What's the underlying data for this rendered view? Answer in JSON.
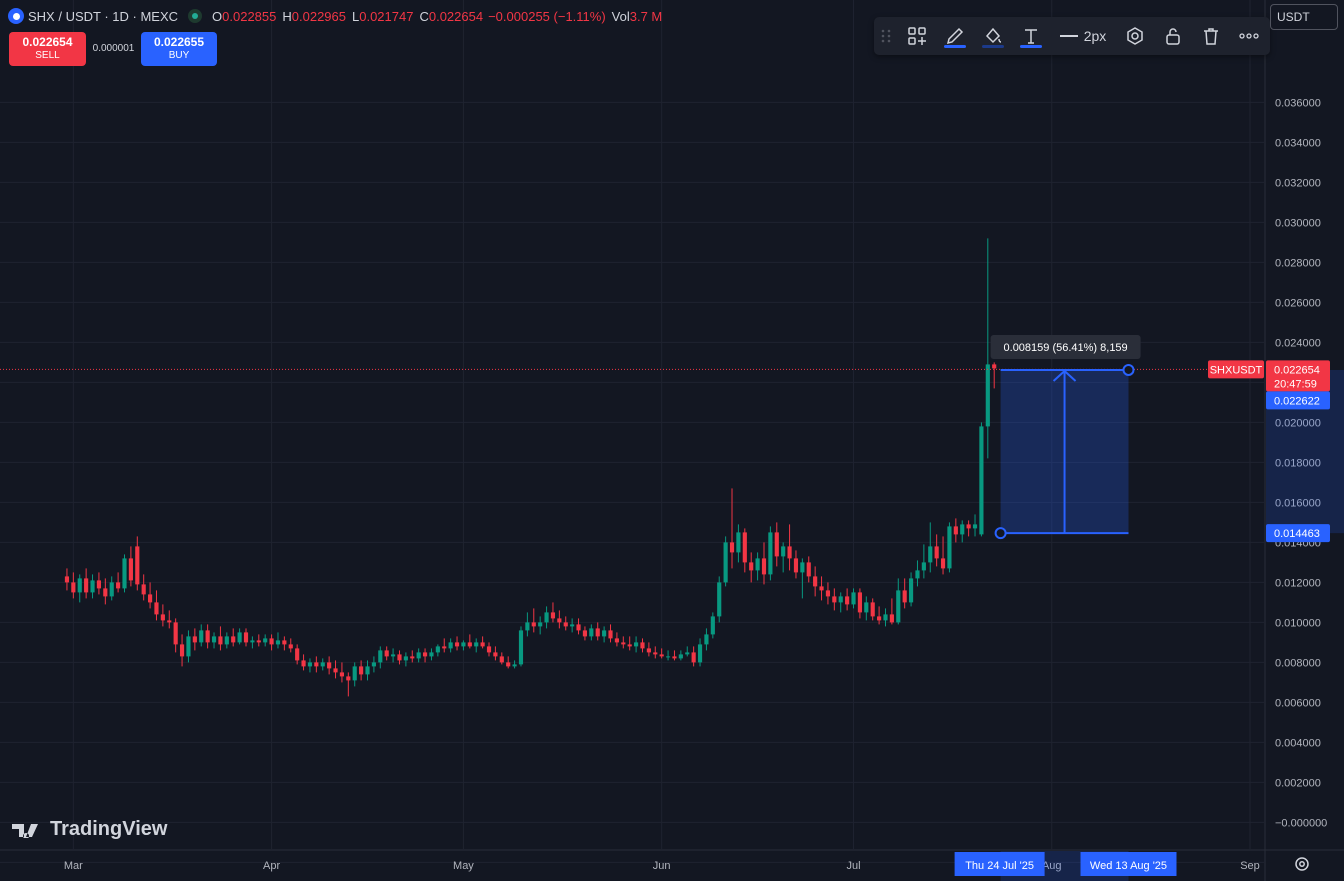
{
  "header": {
    "symbol": "SHX / USDT · 1D · MEXC",
    "o_label": "O",
    "o_value": "0.022855",
    "h_label": "H",
    "h_value": "0.022965",
    "l_label": "L",
    "l_value": "0.021747",
    "c_label": "C",
    "c_value": "0.022654",
    "change": "−0.000255 (−1.11%)",
    "vol_label": "Vol",
    "vol_value": "3.7 M",
    "icons": [
      "coin-logo-icon",
      "market-open-dot-icon"
    ]
  },
  "trade": {
    "sell_price": "0.022654",
    "sell_label": "SELL",
    "spread": "0.000001",
    "buy_price": "0.022655",
    "buy_label": "BUY"
  },
  "toolbar": {
    "width_label": "2px",
    "icons": [
      "drag-handle-icon",
      "templates-icon",
      "pencil-icon",
      "fill-icon",
      "text-icon",
      "line-width-icon",
      "settings-icon",
      "lock-icon",
      "trash-icon",
      "more-icon"
    ]
  },
  "currency_button": "USDT",
  "brand": "TradingView",
  "colors": {
    "background": "#131722",
    "grid": "#1f2330",
    "up": "#089981",
    "down": "#f23645",
    "accent": "#2962ff",
    "measure_fill": "rgba(41,98,255,0.25)",
    "price_line": "#f23645"
  },
  "chart_data": {
    "type": "candlestick",
    "ylim": [
      -0.0023,
      0.0372
    ],
    "y_ticks": [
      "0.036000",
      "0.034000",
      "0.032000",
      "0.030000",
      "0.028000",
      "0.026000",
      "0.024000",
      "0.022000",
      "0.020000",
      "0.018000",
      "0.016000",
      "0.014000",
      "0.012000",
      "0.010000",
      "0.008000",
      "0.006000",
      "0.004000",
      "0.002000",
      "−0.000000",
      "−0.002000"
    ],
    "x_ticks": [
      {
        "label": "Mar",
        "date": "2025-03-01"
      },
      {
        "label": "Apr",
        "date": "2025-04-01"
      },
      {
        "label": "May",
        "date": "2025-05-01"
      },
      {
        "label": "Jun",
        "date": "2025-06-01"
      },
      {
        "label": "Jul",
        "date": "2025-07-01"
      },
      {
        "label": "Aug",
        "date": "2025-08-01"
      },
      {
        "label": "Sep",
        "date": "2025-09-01"
      }
    ],
    "x_range": [
      "2025-02-18",
      "2025-09-01"
    ],
    "last_price": {
      "label": "SHXUSDT",
      "value": "0.022654",
      "countdown": "20:47:59"
    },
    "measure": {
      "start_date": "2025-07-24",
      "end_date": "2025-08-13",
      "start_label": "Thu 24 Jul '25",
      "end_label": "Wed 13 Aug '25",
      "low": 0.014463,
      "high": 0.022622,
      "low_label": "0.014463",
      "high_label": "0.022622",
      "info": "0.008159 (56.41%) 8,159"
    },
    "candles": [
      [
        0.0123,
        0.0127,
        0.0116,
        0.012
      ],
      [
        0.012,
        0.0125,
        0.0112,
        0.0115
      ],
      [
        0.0115,
        0.0124,
        0.011,
        0.0122
      ],
      [
        0.0122,
        0.0127,
        0.0112,
        0.0115
      ],
      [
        0.0115,
        0.0124,
        0.0112,
        0.0121
      ],
      [
        0.0121,
        0.0125,
        0.0114,
        0.0117
      ],
      [
        0.0117,
        0.0122,
        0.0109,
        0.0113
      ],
      [
        0.0113,
        0.0123,
        0.0111,
        0.012
      ],
      [
        0.012,
        0.0125,
        0.0115,
        0.0117
      ],
      [
        0.0117,
        0.0134,
        0.0115,
        0.0132
      ],
      [
        0.0132,
        0.0138,
        0.0118,
        0.0121
      ],
      [
        0.0138,
        0.0143,
        0.0116,
        0.0119
      ],
      [
        0.0119,
        0.0124,
        0.0111,
        0.0114
      ],
      [
        0.0114,
        0.012,
        0.0107,
        0.011
      ],
      [
        0.011,
        0.0116,
        0.0101,
        0.0104
      ],
      [
        0.0104,
        0.0109,
        0.0098,
        0.0101
      ],
      [
        0.0101,
        0.0106,
        0.0097,
        0.01
      ],
      [
        0.01,
        0.0102,
        0.0085,
        0.0089
      ],
      [
        0.0089,
        0.0094,
        0.0078,
        0.0083
      ],
      [
        0.0083,
        0.0096,
        0.008,
        0.0093
      ],
      [
        0.0093,
        0.0097,
        0.0086,
        0.009
      ],
      [
        0.009,
        0.0099,
        0.0088,
        0.0096
      ],
      [
        0.0096,
        0.0099,
        0.0087,
        0.009
      ],
      [
        0.009,
        0.0095,
        0.0087,
        0.0093
      ],
      [
        0.0093,
        0.0098,
        0.0086,
        0.0089
      ],
      [
        0.0089,
        0.0095,
        0.0087,
        0.0093
      ],
      [
        0.0093,
        0.0097,
        0.0088,
        0.009
      ],
      [
        0.009,
        0.0097,
        0.0089,
        0.0095
      ],
      [
        0.0095,
        0.0097,
        0.0088,
        0.009
      ],
      [
        0.009,
        0.0093,
        0.0087,
        0.0091
      ],
      [
        0.0091,
        0.0094,
        0.0088,
        0.009
      ],
      [
        0.009,
        0.0094,
        0.0088,
        0.0092
      ],
      [
        0.0092,
        0.0094,
        0.0086,
        0.0089
      ],
      [
        0.0089,
        0.0095,
        0.0087,
        0.0091
      ],
      [
        0.0091,
        0.0093,
        0.0086,
        0.0089
      ],
      [
        0.0089,
        0.0092,
        0.0085,
        0.0087
      ],
      [
        0.0087,
        0.0089,
        0.0079,
        0.0081
      ],
      [
        0.0081,
        0.0084,
        0.0076,
        0.0078
      ],
      [
        0.0078,
        0.0082,
        0.0075,
        0.008
      ],
      [
        0.008,
        0.0083,
        0.0075,
        0.0078
      ],
      [
        0.0078,
        0.0082,
        0.0076,
        0.008
      ],
      [
        0.008,
        0.0083,
        0.0074,
        0.0077
      ],
      [
        0.0077,
        0.0081,
        0.0072,
        0.0075
      ],
      [
        0.0075,
        0.008,
        0.007,
        0.0073
      ],
      [
        0.0073,
        0.0075,
        0.0063,
        0.0071
      ],
      [
        0.0071,
        0.008,
        0.0068,
        0.0078
      ],
      [
        0.0078,
        0.0081,
        0.0071,
        0.0074
      ],
      [
        0.0074,
        0.0081,
        0.0071,
        0.0078
      ],
      [
        0.0078,
        0.0083,
        0.0075,
        0.008
      ],
      [
        0.008,
        0.0088,
        0.0077,
        0.0086
      ],
      [
        0.0086,
        0.0088,
        0.0081,
        0.0083
      ],
      [
        0.0083,
        0.0087,
        0.008,
        0.0084
      ],
      [
        0.0084,
        0.0086,
        0.0079,
        0.0081
      ],
      [
        0.0081,
        0.0085,
        0.0078,
        0.0083
      ],
      [
        0.0083,
        0.0086,
        0.008,
        0.0082
      ],
      [
        0.0082,
        0.0087,
        0.008,
        0.0085
      ],
      [
        0.0085,
        0.0087,
        0.008,
        0.0083
      ],
      [
        0.0083,
        0.0087,
        0.0081,
        0.0085
      ],
      [
        0.0085,
        0.0089,
        0.0083,
        0.0088
      ],
      [
        0.0088,
        0.0092,
        0.0085,
        0.0087
      ],
      [
        0.0087,
        0.0092,
        0.0085,
        0.009
      ],
      [
        0.009,
        0.0093,
        0.0086,
        0.0088
      ],
      [
        0.0088,
        0.0091,
        0.0086,
        0.009
      ],
      [
        0.009,
        0.0094,
        0.0087,
        0.0088
      ],
      [
        0.0088,
        0.0092,
        0.0085,
        0.009
      ],
      [
        0.009,
        0.0093,
        0.0087,
        0.0088
      ],
      [
        0.0088,
        0.009,
        0.0083,
        0.0085
      ],
      [
        0.0085,
        0.0088,
        0.0081,
        0.0083
      ],
      [
        0.0083,
        0.0085,
        0.0079,
        0.008
      ],
      [
        0.008,
        0.0083,
        0.0077,
        0.0078
      ],
      [
        0.0078,
        0.0081,
        0.0077,
        0.0079
      ],
      [
        0.0079,
        0.0098,
        0.0078,
        0.0096
      ],
      [
        0.0096,
        0.0105,
        0.0093,
        0.01
      ],
      [
        0.01,
        0.0107,
        0.0095,
        0.0098
      ],
      [
        0.0098,
        0.0103,
        0.0094,
        0.01
      ],
      [
        0.01,
        0.0108,
        0.0097,
        0.0105
      ],
      [
        0.0105,
        0.011,
        0.01,
        0.0102
      ],
      [
        0.0102,
        0.0106,
        0.0097,
        0.01
      ],
      [
        0.01,
        0.0103,
        0.0096,
        0.0098
      ],
      [
        0.0098,
        0.0102,
        0.0095,
        0.0099
      ],
      [
        0.0099,
        0.0102,
        0.0094,
        0.0096
      ],
      [
        0.0096,
        0.0098,
        0.0091,
        0.0093
      ],
      [
        0.0093,
        0.0099,
        0.0091,
        0.0097
      ],
      [
        0.0097,
        0.01,
        0.0091,
        0.0093
      ],
      [
        0.0093,
        0.0098,
        0.009,
        0.0096
      ],
      [
        0.0096,
        0.0099,
        0.009,
        0.0092
      ],
      [
        0.0092,
        0.0095,
        0.0088,
        0.009
      ],
      [
        0.009,
        0.0093,
        0.0087,
        0.0089
      ],
      [
        0.0089,
        0.0093,
        0.0086,
        0.0088
      ],
      [
        0.0088,
        0.0093,
        0.0085,
        0.009
      ],
      [
        0.009,
        0.0092,
        0.0085,
        0.0087
      ],
      [
        0.0087,
        0.009,
        0.0083,
        0.0085
      ],
      [
        0.0085,
        0.0088,
        0.0082,
        0.0084
      ],
      [
        0.0084,
        0.0087,
        0.0082,
        0.0083
      ],
      [
        0.0083,
        0.0086,
        0.0081,
        0.0083
      ],
      [
        0.0083,
        0.0086,
        0.0081,
        0.0082
      ],
      [
        0.0082,
        0.0086,
        0.0081,
        0.0084
      ],
      [
        0.0084,
        0.0088,
        0.0083,
        0.0085
      ],
      [
        0.0085,
        0.0088,
        0.0078,
        0.008
      ],
      [
        0.008,
        0.0092,
        0.0078,
        0.0089
      ],
      [
        0.0089,
        0.0097,
        0.0086,
        0.0094
      ],
      [
        0.0094,
        0.0105,
        0.0092,
        0.0103
      ],
      [
        0.0103,
        0.0123,
        0.01,
        0.012
      ],
      [
        0.012,
        0.0143,
        0.0118,
        0.014
      ],
      [
        0.014,
        0.0167,
        0.0127,
        0.0135
      ],
      [
        0.0135,
        0.0149,
        0.013,
        0.0145
      ],
      [
        0.0145,
        0.0147,
        0.0125,
        0.013
      ],
      [
        0.013,
        0.0135,
        0.012,
        0.0126
      ],
      [
        0.0126,
        0.0135,
        0.0121,
        0.0132
      ],
      [
        0.0132,
        0.014,
        0.0119,
        0.0124
      ],
      [
        0.0124,
        0.0148,
        0.0121,
        0.0145
      ],
      [
        0.0145,
        0.015,
        0.0128,
        0.0133
      ],
      [
        0.0133,
        0.014,
        0.0125,
        0.0138
      ],
      [
        0.0138,
        0.0149,
        0.0126,
        0.0132
      ],
      [
        0.0132,
        0.0136,
        0.0122,
        0.0125
      ],
      [
        0.0125,
        0.0132,
        0.0112,
        0.013
      ],
      [
        0.013,
        0.0133,
        0.012,
        0.0123
      ],
      [
        0.0123,
        0.0128,
        0.0113,
        0.0118
      ],
      [
        0.0118,
        0.0123,
        0.0111,
        0.0116
      ],
      [
        0.0116,
        0.012,
        0.0109,
        0.0113
      ],
      [
        0.0113,
        0.0117,
        0.0106,
        0.011
      ],
      [
        0.011,
        0.0115,
        0.0105,
        0.0113
      ],
      [
        0.0113,
        0.0117,
        0.0106,
        0.0109
      ],
      [
        0.0109,
        0.0117,
        0.0107,
        0.0115
      ],
      [
        0.0115,
        0.0117,
        0.0102,
        0.0105
      ],
      [
        0.0105,
        0.0113,
        0.0101,
        0.011
      ],
      [
        0.011,
        0.0112,
        0.0101,
        0.0103
      ],
      [
        0.0103,
        0.0108,
        0.0099,
        0.0101
      ],
      [
        0.0101,
        0.0107,
        0.0098,
        0.0104
      ],
      [
        0.0104,
        0.0112,
        0.0099,
        0.01
      ],
      [
        0.01,
        0.0122,
        0.0099,
        0.0116
      ],
      [
        0.0116,
        0.0122,
        0.0107,
        0.011
      ],
      [
        0.011,
        0.0125,
        0.0108,
        0.0122
      ],
      [
        0.0122,
        0.0131,
        0.0118,
        0.0126
      ],
      [
        0.0126,
        0.0139,
        0.0122,
        0.013
      ],
      [
        0.013,
        0.015,
        0.0125,
        0.0138
      ],
      [
        0.0138,
        0.0144,
        0.0128,
        0.0132
      ],
      [
        0.0132,
        0.0143,
        0.0124,
        0.0127
      ],
      [
        0.0127,
        0.015,
        0.0125,
        0.0148
      ],
      [
        0.0148,
        0.0152,
        0.014,
        0.0144
      ],
      [
        0.0144,
        0.0151,
        0.014,
        0.0149
      ],
      [
        0.0149,
        0.0151,
        0.0143,
        0.0147
      ],
      [
        0.0147,
        0.0154,
        0.0143,
        0.0149
      ],
      [
        0.0144,
        0.02,
        0.0143,
        0.0198
      ],
      [
        0.0198,
        0.0292,
        0.0182,
        0.0229
      ],
      [
        0.0229,
        0.023,
        0.0217,
        0.0227
      ]
    ]
  }
}
